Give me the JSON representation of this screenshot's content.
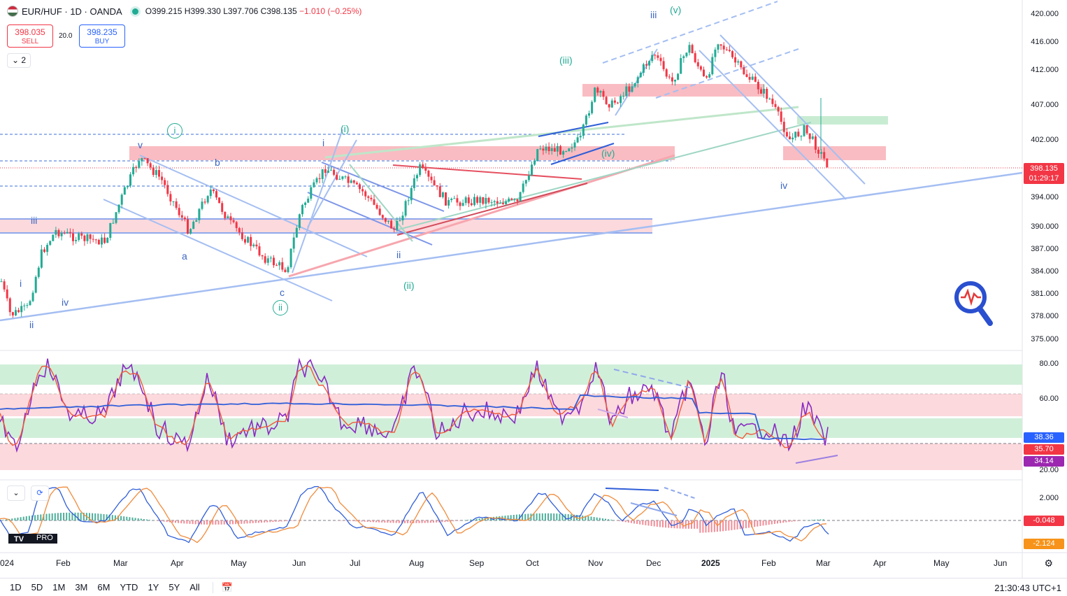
{
  "header": {
    "symbol": "EUR/HUF · 1D · OANDA",
    "open": "O399.215",
    "high": "H399.330",
    "low": "L397.706",
    "close": "C398.135",
    "change": "−1.010 (−0.25%)"
  },
  "trade": {
    "sell_price": "398.035",
    "sell_label": "SELL",
    "spread": "20.0",
    "buy_price": "398.235",
    "buy_label": "BUY",
    "indicators_count": "2"
  },
  "price_axis": [
    "420.000",
    "416.000",
    "412.000",
    "407.000",
    "402.000",
    "398.135",
    "394.000",
    "390.000",
    "387.000",
    "384.000",
    "381.000",
    "378.000",
    "375.000"
  ],
  "last_price": {
    "value": "398.135",
    "countdown": "01:29:17",
    "color": "#f23645"
  },
  "rsi_axis": [
    "80.00",
    "60.00",
    "20.00"
  ],
  "rsi_tags": {
    "blue": "38.36",
    "red": "35.70",
    "purple": "34.14"
  },
  "macd_axis": [
    "2.000"
  ],
  "macd_tags": {
    "hist": "-0.048",
    "signal": "-2.124"
  },
  "time_axis": [
    "024",
    "Feb",
    "Mar",
    "Apr",
    "May",
    "Jun",
    "Jul",
    "Aug",
    "Sep",
    "Oct",
    "Nov",
    "Dec",
    "2025",
    "Feb",
    "Mar",
    "Apr",
    "May",
    "Jun"
  ],
  "waves": {
    "v": "v",
    "b": "b",
    "a": "a",
    "c": "c",
    "i_circle": "i",
    "ii_circle": "ii",
    "iii_left": "iii",
    "i_left": "i",
    "iv_left": "iv",
    "ii_left": "ii",
    "i_mid": "i",
    "i_paren": "(i)",
    "ii_mid": "ii",
    "ii_paren": "(ii)",
    "iii_paren": "(iii)",
    "iv_paren": "(iv)",
    "iii_top": "iii",
    "v_paren": "(v)",
    "iv_right": "iv"
  },
  "timeframes": [
    "1D",
    "5D",
    "1M",
    "3M",
    "6M",
    "YTD",
    "1Y",
    "5Y",
    "All"
  ],
  "clock": "21:30:43 UTC+1",
  "logo_text": "PRO",
  "colors": {
    "up": "#22ab94",
    "down": "#f23645",
    "zone_red": "#f7a6ae",
    "zone_green": "#bfe6c9",
    "trend_blue": "#a4bef2"
  }
}
